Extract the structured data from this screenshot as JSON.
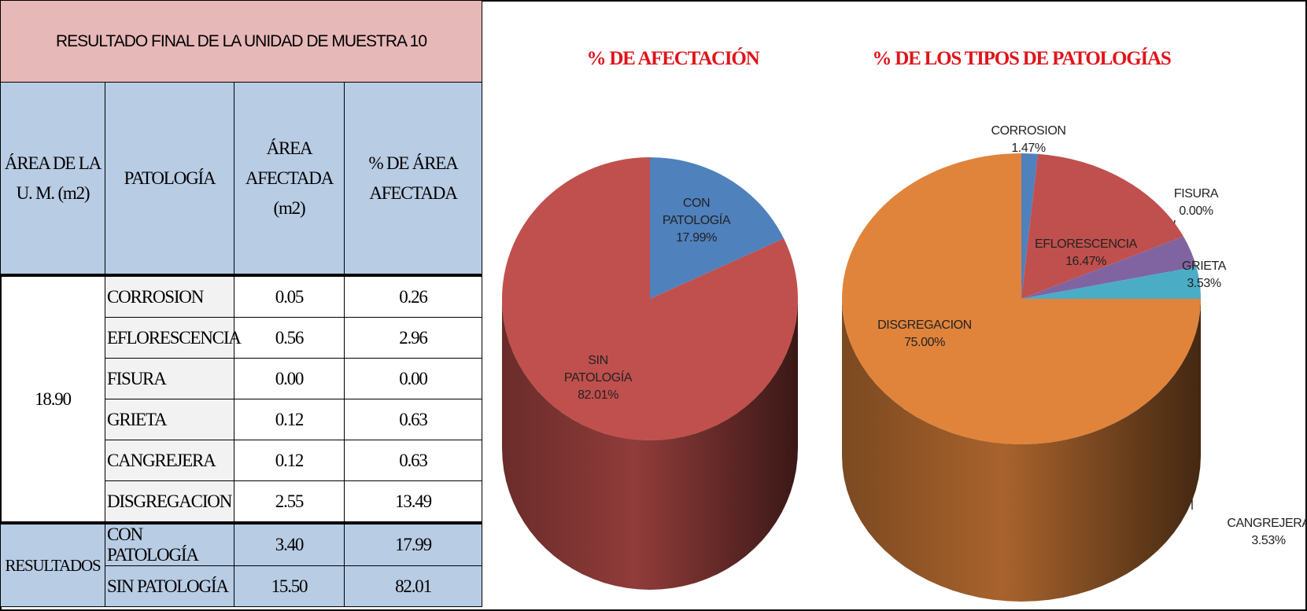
{
  "table": {
    "title": "RESULTADO FINAL DE LA UNIDAD DE MUESTRA 10",
    "headers": [
      "ÁREA DE LA U. M. (m2)",
      "PATOLOGÍA",
      "ÁREA AFECTADA (m2)",
      "% DE ÁREA AFECTADA"
    ],
    "area": "18.90",
    "rows": [
      [
        "CORROSION",
        "0.05",
        "0.26"
      ],
      [
        "EFLORESCENCIA",
        "0.56",
        "2.96"
      ],
      [
        "FISURA",
        "0.00",
        "0.00"
      ],
      [
        "GRIETA",
        "0.12",
        "0.63"
      ],
      [
        "CANGREJERA",
        "0.12",
        "0.63"
      ],
      [
        "DISGREGACION",
        "2.55",
        "13.49"
      ]
    ],
    "results_label": "RESULTADOS",
    "results": [
      [
        "CON PATOLOGÍA",
        "3.40",
        "17.99"
      ],
      [
        "SIN PATOLOGÍA",
        "15.50",
        "82.01"
      ]
    ]
  },
  "chart_data": [
    {
      "type": "pie",
      "title": "% DE AFECTACIÓN",
      "categories": [
        "CON PATOLOGÍA",
        "SIN PATOLOGÍA"
      ],
      "values": [
        17.99,
        82.01
      ],
      "value_labels": [
        "17.99%",
        "82.01%"
      ],
      "colors": [
        "#4f81bd",
        "#c0504d"
      ]
    },
    {
      "type": "pie",
      "title": "% DE LOS TIPOS DE PATOLOGÍAS",
      "categories": [
        "CORROSION",
        "EFLORESCENCIA",
        "FISURA",
        "GRIETA",
        "CANGREJERA",
        "DISGREGACION"
      ],
      "values": [
        1.47,
        16.47,
        0,
        3.53,
        3.53,
        75.0
      ],
      "value_labels": [
        "1.47%",
        "16.47%",
        "0.00%",
        "3.53%",
        "3.53%",
        "75.00%"
      ],
      "colors": [
        "#4f81bd",
        "#c0504d",
        "#9bbb59",
        "#8064a2",
        "#4bacc6",
        "#e0843c"
      ]
    }
  ]
}
